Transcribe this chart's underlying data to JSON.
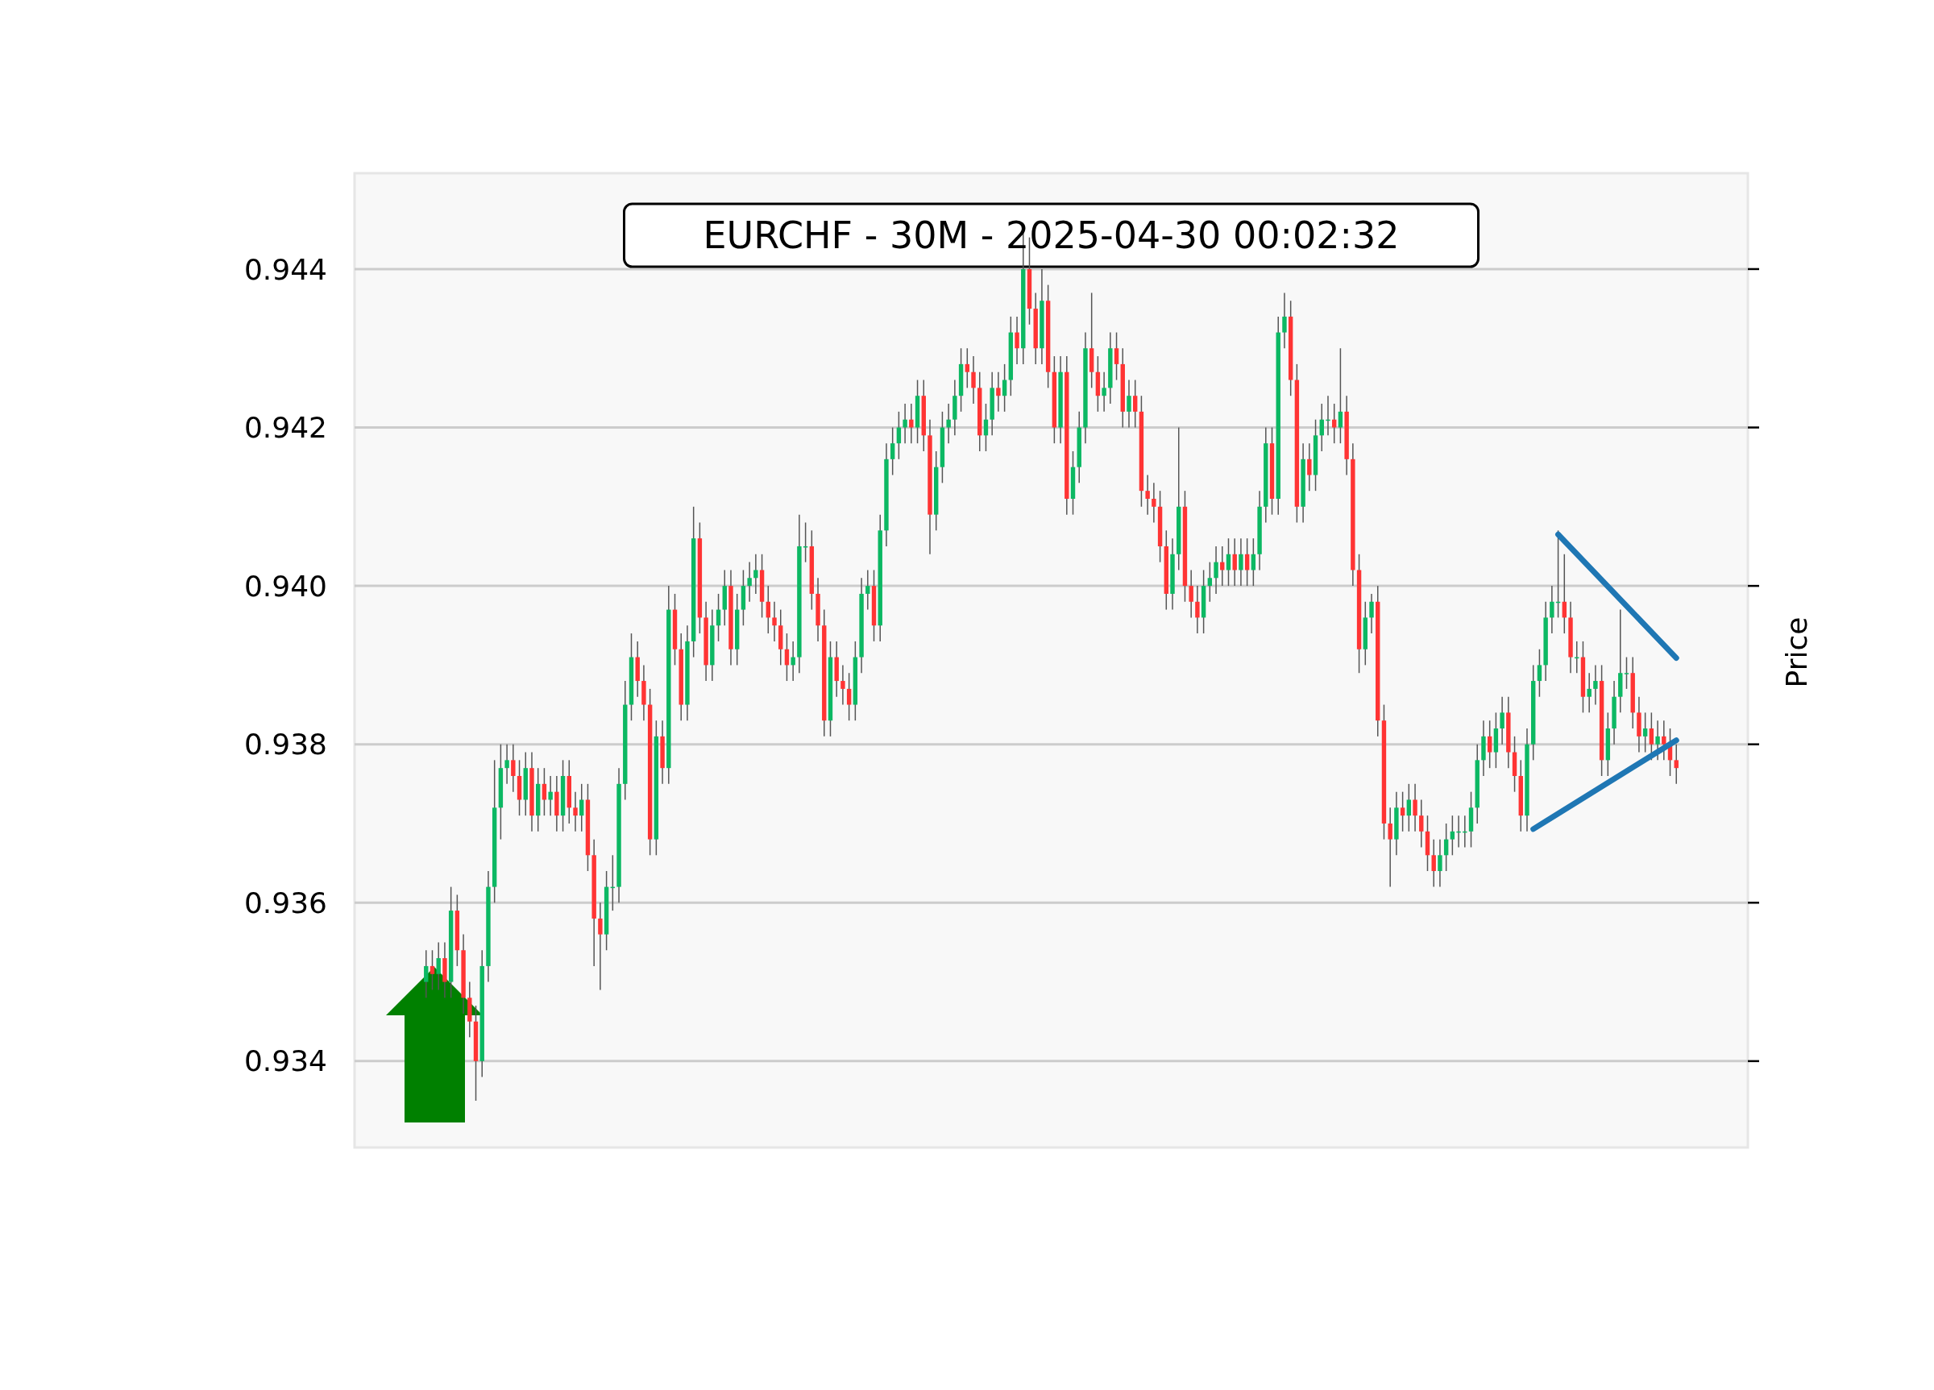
{
  "chart_data": {
    "type": "candlestick",
    "title": "EURCHF - 30M - 2025-04-30 00:02:32",
    "ylabel": "Price",
    "ylim": [
      0.93291,
      0.94521
    ],
    "yticks": [
      0.934,
      0.936,
      0.938,
      {
        "value": 0.94,
        "label": "0.940"
      },
      0.942,
      0.944
    ],
    "grid": "y",
    "categories": [
      null,
      null,
      null,
      null,
      null,
      null,
      null,
      null,
      null,
      null,
      null,
      null,
      null,
      null,
      null,
      null,
      null,
      null,
      null,
      null,
      null,
      null,
      null,
      null,
      null,
      null,
      null,
      null,
      null,
      null,
      null,
      null,
      null,
      null,
      null,
      null,
      null,
      null,
      null,
      null,
      null,
      null,
      null,
      null,
      null,
      null,
      null,
      null,
      null,
      null,
      null,
      null,
      null,
      null,
      null,
      null,
      null,
      null,
      null,
      null,
      null,
      null,
      null,
      null,
      null,
      null,
      null,
      null,
      null,
      null,
      null,
      null,
      null,
      null,
      null,
      null,
      null,
      null,
      null,
      null,
      null,
      null,
      null,
      null,
      null,
      null,
      null,
      null,
      null,
      null,
      null,
      null,
      null,
      null,
      null,
      null,
      null,
      null,
      null,
      null,
      null,
      null,
      null,
      null,
      null,
      null,
      null,
      null,
      null,
      null,
      null,
      null,
      null,
      null,
      null,
      null,
      null,
      null,
      null,
      null,
      null,
      null,
      null,
      null,
      null,
      null,
      null,
      null,
      null,
      null,
      null,
      null,
      null,
      null,
      null,
      null,
      null,
      null,
      null,
      null,
      null,
      null,
      null,
      null,
      null,
      null,
      null,
      null,
      null,
      null,
      null,
      null,
      null,
      null,
      null,
      null,
      null,
      null,
      null,
      null,
      null,
      null,
      null,
      null,
      null,
      null,
      null,
      null,
      null,
      null,
      null,
      null,
      null,
      null,
      null,
      null,
      null,
      null,
      null,
      null,
      null,
      null,
      null,
      null,
      null,
      null,
      null,
      null,
      null,
      null,
      null,
      null,
      null,
      null,
      null,
      null,
      null,
      null,
      null,
      null,
      null,
      null,
      null,
      null,
      null,
      null,
      null,
      null,
      null,
      null,
      null,
      null,
      null,
      null,
      null,
      null,
      null,
      null,
      null,
      null,
      null,
      null,
      null,
      null
    ],
    "ohlc": [
      null,
      null,
      null,
      null,
      null,
      null,
      null,
      null,
      null,
      null,
      null,
      [
        0.935,
        0.9354,
        0.9348,
        0.9352
      ],
      [
        0.9352,
        0.9354,
        0.9349,
        0.9351
      ],
      [
        0.9351,
        0.9355,
        0.9349,
        0.9353
      ],
      [
        0.9353,
        0.9355,
        0.9348,
        0.935
      ],
      [
        0.935,
        0.9362,
        0.9348,
        0.9359
      ],
      [
        0.9359,
        0.9361,
        0.9352,
        0.9354
      ],
      [
        0.9354,
        0.9356,
        0.9346,
        0.9348
      ],
      [
        0.9348,
        0.935,
        0.9343,
        0.9345
      ],
      [
        0.9345,
        0.9347,
        0.9335,
        0.934
      ],
      [
        0.934,
        0.9354,
        0.9338,
        0.9352
      ],
      [
        0.9352,
        0.9364,
        0.935,
        0.9362
      ],
      [
        0.9362,
        0.9378,
        0.936,
        0.9372
      ],
      [
        0.9372,
        0.938,
        0.9368,
        0.9377
      ],
      [
        0.9377,
        0.938,
        0.9375,
        0.9378
      ],
      [
        0.9378,
        0.938,
        0.9374,
        0.9376
      ],
      [
        0.9376,
        0.9378,
        0.9371,
        0.9373
      ],
      [
        0.9373,
        0.9379,
        0.9371,
        0.9377
      ],
      [
        0.9377,
        0.9379,
        0.9369,
        0.9371
      ],
      [
        0.9371,
        0.9377,
        0.9369,
        0.9375
      ],
      [
        0.9375,
        0.9377,
        0.9371,
        0.9373
      ],
      [
        0.9373,
        0.9376,
        0.9371,
        0.9374
      ],
      [
        0.9374,
        0.9376,
        0.9369,
        0.9371
      ],
      [
        0.9371,
        0.9378,
        0.9369,
        0.9376
      ],
      [
        0.9376,
        0.9378,
        0.937,
        0.9372
      ],
      [
        0.9372,
        0.9374,
        0.9369,
        0.9371
      ],
      [
        0.9371,
        0.9375,
        0.9369,
        0.9373
      ],
      [
        0.9373,
        0.9375,
        0.9364,
        0.9366
      ],
      [
        0.9366,
        0.9368,
        0.9352,
        0.9358
      ],
      [
        0.9358,
        0.936,
        0.9349,
        0.9356
      ],
      [
        0.9356,
        0.9364,
        0.9354,
        0.9362
      ],
      [
        0.9362,
        0.9366,
        0.9359,
        0.9362
      ],
      [
        0.9362,
        0.9377,
        0.936,
        0.9375
      ],
      [
        0.9375,
        0.9388,
        0.9373,
        0.9385
      ],
      [
        0.9385,
        0.9394,
        0.9383,
        0.9391
      ],
      [
        0.9391,
        0.9393,
        0.9386,
        0.9388
      ],
      [
        0.9388,
        0.939,
        0.9383,
        0.9385
      ],
      [
        0.9385,
        0.9387,
        0.9366,
        0.9368
      ],
      [
        0.9368,
        0.9383,
        0.9366,
        0.9381
      ],
      [
        0.9381,
        0.9383,
        0.9375,
        0.9377
      ],
      [
        0.9377,
        0.94,
        0.9375,
        0.9397
      ],
      [
        0.9397,
        0.9399,
        0.939,
        0.9392
      ],
      [
        0.9392,
        0.9394,
        0.9383,
        0.9385
      ],
      [
        0.9385,
        0.9395,
        0.9383,
        0.9393
      ],
      [
        0.9393,
        0.941,
        0.9391,
        0.9406
      ],
      [
        0.9406,
        0.9408,
        0.9394,
        0.9396
      ],
      [
        0.9396,
        0.9398,
        0.9388,
        0.939
      ],
      [
        0.939,
        0.9397,
        0.9388,
        0.9395
      ],
      [
        0.9395,
        0.9399,
        0.9393,
        0.9397
      ],
      [
        0.9397,
        0.9402,
        0.9395,
        0.94
      ],
      [
        0.94,
        0.9402,
        0.939,
        0.9392
      ],
      [
        0.9392,
        0.9399,
        0.939,
        0.9397
      ],
      [
        0.9397,
        0.9402,
        0.9395,
        0.94
      ],
      [
        0.94,
        0.9403,
        0.9398,
        0.9401
      ],
      [
        0.9401,
        0.9404,
        0.9399,
        0.9402
      ],
      [
        0.9402,
        0.9404,
        0.9396,
        0.9398
      ],
      [
        0.9398,
        0.94,
        0.9394,
        0.9396
      ],
      [
        0.9396,
        0.9398,
        0.9393,
        0.9395
      ],
      [
        0.9395,
        0.9397,
        0.939,
        0.9392
      ],
      [
        0.9392,
        0.9394,
        0.9388,
        0.939
      ],
      [
        0.939,
        0.9393,
        0.9388,
        0.9391
      ],
      [
        0.9391,
        0.9409,
        0.9389,
        0.9405
      ],
      [
        0.9405,
        0.9408,
        0.9403,
        0.9405
      ],
      [
        0.9405,
        0.9407,
        0.9397,
        0.9399
      ],
      [
        0.9399,
        0.9401,
        0.9393,
        0.9395
      ],
      [
        0.9395,
        0.9397,
        0.9381,
        0.9383
      ],
      [
        0.9383,
        0.9393,
        0.9381,
        0.9391
      ],
      [
        0.9391,
        0.9393,
        0.9386,
        0.9388
      ],
      [
        0.9388,
        0.939,
        0.9385,
        0.9387
      ],
      [
        0.9387,
        0.9389,
        0.9383,
        0.9385
      ],
      [
        0.9385,
        0.9393,
        0.9383,
        0.9391
      ],
      [
        0.9391,
        0.9401,
        0.9389,
        0.9399
      ],
      [
        0.9399,
        0.9402,
        0.9397,
        0.94
      ],
      [
        0.94,
        0.9402,
        0.9393,
        0.9395
      ],
      [
        0.9395,
        0.9409,
        0.9393,
        0.9407
      ],
      [
        0.9407,
        0.9418,
        0.9405,
        0.9416
      ],
      [
        0.9416,
        0.942,
        0.9414,
        0.9418
      ],
      [
        0.9418,
        0.9422,
        0.9416,
        0.942
      ],
      [
        0.942,
        0.9423,
        0.9418,
        0.9421
      ],
      [
        0.9421,
        0.9423,
        0.9418,
        0.942
      ],
      [
        0.942,
        0.9426,
        0.9418,
        0.9424
      ],
      [
        0.9424,
        0.9426,
        0.9417,
        0.9419
      ],
      [
        0.9419,
        0.9421,
        0.9404,
        0.9409
      ],
      [
        0.9409,
        0.9417,
        0.9407,
        0.9415
      ],
      [
        0.9415,
        0.9422,
        0.9413,
        0.942
      ],
      [
        0.942,
        0.9423,
        0.9418,
        0.9421
      ],
      [
        0.9421,
        0.9426,
        0.9419,
        0.9424
      ],
      [
        0.9424,
        0.943,
        0.9422,
        0.9428
      ],
      [
        0.9428,
        0.943,
        0.9425,
        0.9427
      ],
      [
        0.9427,
        0.9429,
        0.9423,
        0.9425
      ],
      [
        0.9425,
        0.9427,
        0.9417,
        0.9419
      ],
      [
        0.9419,
        0.9423,
        0.9417,
        0.9421
      ],
      [
        0.9421,
        0.9427,
        0.9419,
        0.9425
      ],
      [
        0.9425,
        0.9427,
        0.9422,
        0.9424
      ],
      [
        0.9424,
        0.9428,
        0.9422,
        0.9426
      ],
      [
        0.9426,
        0.9434,
        0.9424,
        0.9432
      ],
      [
        0.9432,
        0.9434,
        0.9428,
        0.943
      ],
      [
        0.943,
        0.9445,
        0.9428,
        0.944
      ],
      [
        0.944,
        0.9444,
        0.9433,
        0.9435
      ],
      [
        0.9435,
        0.9437,
        0.9428,
        0.943
      ],
      [
        0.943,
        0.944,
        0.9428,
        0.9436
      ],
      [
        0.9436,
        0.9438,
        0.9425,
        0.9427
      ],
      [
        0.9427,
        0.9429,
        0.9418,
        0.942
      ],
      [
        0.942,
        0.9429,
        0.9418,
        0.9427
      ],
      [
        0.9427,
        0.9429,
        0.9409,
        0.9411
      ],
      [
        0.9411,
        0.9417,
        0.9409,
        0.9415
      ],
      [
        0.9415,
        0.9422,
        0.9413,
        0.942
      ],
      [
        0.942,
        0.9432,
        0.9418,
        0.943
      ],
      [
        0.943,
        0.9437,
        0.9425,
        0.9427
      ],
      [
        0.9427,
        0.9429,
        0.9422,
        0.9424
      ],
      [
        0.9424,
        0.9427,
        0.9422,
        0.9425
      ],
      [
        0.9425,
        0.9432,
        0.9423,
        0.943
      ],
      [
        0.943,
        0.9432,
        0.9426,
        0.9428
      ],
      [
        0.9428,
        0.943,
        0.942,
        0.9422
      ],
      [
        0.9422,
        0.9426,
        0.942,
        0.9424
      ],
      [
        0.9424,
        0.9426,
        0.942,
        0.9422
      ],
      [
        0.9422,
        0.9424,
        0.941,
        0.9412
      ],
      [
        0.9412,
        0.9414,
        0.9409,
        0.9411
      ],
      [
        0.9411,
        0.9413,
        0.9408,
        0.941
      ],
      [
        0.941,
        0.9412,
        0.9403,
        0.9405
      ],
      [
        0.9405,
        0.9407,
        0.9397,
        0.9399
      ],
      [
        0.9399,
        0.9406,
        0.9397,
        0.9404
      ],
      [
        0.9404,
        0.942,
        0.9402,
        0.941
      ],
      [
        0.941,
        0.9412,
        0.9398,
        0.94
      ],
      [
        0.94,
        0.9402,
        0.9396,
        0.9398
      ],
      [
        0.9398,
        0.94,
        0.9394,
        0.9396
      ],
      [
        0.9396,
        0.9402,
        0.9394,
        0.94
      ],
      [
        0.94,
        0.9403,
        0.9398,
        0.9401
      ],
      [
        0.9401,
        0.9405,
        0.9399,
        0.9403
      ],
      [
        0.9403,
        0.9405,
        0.94,
        0.9402
      ],
      [
        0.9402,
        0.9406,
        0.94,
        0.9404
      ],
      [
        0.9404,
        0.9406,
        0.94,
        0.9402
      ],
      [
        0.9402,
        0.9406,
        0.94,
        0.9404
      ],
      [
        0.9404,
        0.9406,
        0.94,
        0.9402
      ],
      [
        0.9402,
        0.9406,
        0.94,
        0.9404
      ],
      [
        0.9404,
        0.9412,
        0.9402,
        0.941
      ],
      [
        0.941,
        0.942,
        0.9408,
        0.9418
      ],
      [
        0.9418,
        0.942,
        0.9409,
        0.9411
      ],
      [
        0.9411,
        0.9434,
        0.9409,
        0.9432
      ],
      [
        0.9432,
        0.9437,
        0.943,
        0.9434
      ],
      [
        0.9434,
        0.9436,
        0.9424,
        0.9426
      ],
      [
        0.9426,
        0.9428,
        0.9408,
        0.941
      ],
      [
        0.941,
        0.9418,
        0.9408,
        0.9416
      ],
      [
        0.9416,
        0.9418,
        0.9412,
        0.9414
      ],
      [
        0.9414,
        0.9421,
        0.9412,
        0.9419
      ],
      [
        0.9419,
        0.9423,
        0.9417,
        0.9421
      ],
      [
        0.9421,
        0.9424,
        0.9419,
        0.9421
      ],
      [
        0.9421,
        0.9423,
        0.9418,
        0.942
      ],
      [
        0.942,
        0.943,
        0.9418,
        0.9422
      ],
      [
        0.9422,
        0.9424,
        0.9414,
        0.9416
      ],
      [
        0.9416,
        0.9418,
        0.94,
        0.9402
      ],
      [
        0.9402,
        0.9404,
        0.9389,
        0.9392
      ],
      [
        0.9392,
        0.9398,
        0.939,
        0.9396
      ],
      [
        0.9396,
        0.9399,
        0.9394,
        0.9398
      ],
      [
        0.9398,
        0.94,
        0.9381,
        0.9383
      ],
      [
        0.9383,
        0.9385,
        0.9368,
        0.937
      ],
      [
        0.937,
        0.9372,
        0.9362,
        0.9368
      ],
      [
        0.9368,
        0.9374,
        0.9366,
        0.9372
      ],
      [
        0.9372,
        0.9374,
        0.9369,
        0.9371
      ],
      [
        0.9371,
        0.9375,
        0.9369,
        0.9373
      ],
      [
        0.9373,
        0.9375,
        0.9369,
        0.9371
      ],
      [
        0.9371,
        0.9373,
        0.9367,
        0.9369
      ],
      [
        0.9369,
        0.9371,
        0.9364,
        0.9366
      ],
      [
        0.9366,
        0.9368,
        0.9362,
        0.9364
      ],
      [
        0.9364,
        0.9368,
        0.9362,
        0.9366
      ],
      [
        0.9366,
        0.937,
        0.9364,
        0.9368
      ],
      [
        0.9368,
        0.9371,
        0.9366,
        0.9369
      ],
      [
        0.9369,
        0.9371,
        0.9367,
        0.9369
      ],
      [
        0.9369,
        0.9371,
        0.9367,
        0.9369
      ],
      [
        0.9369,
        0.9374,
        0.9367,
        0.9372
      ],
      [
        0.9372,
        0.938,
        0.937,
        0.9378
      ],
      [
        0.9378,
        0.9383,
        0.9376,
        0.9381
      ],
      [
        0.9381,
        0.9383,
        0.9377,
        0.9379
      ],
      [
        0.9379,
        0.9384,
        0.9377,
        0.9382
      ],
      [
        0.9382,
        0.9386,
        0.938,
        0.9384
      ],
      [
        0.9384,
        0.9386,
        0.9377,
        0.9379
      ],
      [
        0.9379,
        0.9381,
        0.9374,
        0.9376
      ],
      [
        0.9376,
        0.9378,
        0.9369,
        0.9371
      ],
      [
        0.9371,
        0.9382,
        0.9369,
        0.938
      ],
      [
        0.938,
        0.939,
        0.9378,
        0.9388
      ],
      [
        0.9388,
        0.9392,
        0.9386,
        0.939
      ],
      [
        0.939,
        0.9398,
        0.9388,
        0.9396
      ],
      [
        0.9396,
        0.94,
        0.9394,
        0.9398
      ],
      [
        0.9398,
        0.9407,
        0.9396,
        0.9398
      ],
      [
        0.9398,
        0.9404,
        0.9394,
        0.9396
      ],
      [
        0.9396,
        0.9398,
        0.9389,
        0.9391
      ],
      [
        0.9391,
        0.9393,
        0.9389,
        0.9391
      ],
      [
        0.9391,
        0.9393,
        0.9384,
        0.9386
      ],
      [
        0.9386,
        0.9389,
        0.9384,
        0.9387
      ],
      [
        0.9387,
        0.939,
        0.9385,
        0.9388
      ],
      [
        0.9388,
        0.939,
        0.9376,
        0.9378
      ],
      [
        0.9378,
        0.9384,
        0.9376,
        0.9382
      ],
      [
        0.9382,
        0.9388,
        0.938,
        0.9386
      ],
      [
        0.9386,
        0.9397,
        0.9384,
        0.9389
      ],
      [
        0.9389,
        0.9391,
        0.9387,
        0.9389
      ],
      [
        0.9389,
        0.9391,
        0.9382,
        0.9384
      ],
      [
        0.9384,
        0.9386,
        0.9379,
        0.9381
      ],
      [
        0.9381,
        0.9384,
        0.9379,
        0.9382
      ],
      [
        0.9382,
        0.9384,
        0.9378,
        0.938
      ],
      [
        0.938,
        0.9383,
        0.9378,
        0.9381
      ],
      [
        0.9381,
        0.9383,
        0.9378,
        0.938
      ],
      [
        0.938,
        0.9382,
        0.9376,
        0.9378
      ],
      [
        0.9378,
        0.938,
        0.9375,
        0.9377
      ],
      null,
      null,
      null,
      null,
      null,
      null,
      null,
      null,
      null,
      null,
      null
    ],
    "series": [
      {
        "type": "line",
        "color": "#1f77b4",
        "values": [
          null,
          null,
          null,
          null,
          null,
          null,
          null,
          null,
          null,
          null,
          null,
          null,
          null,
          null,
          null,
          null,
          null,
          null,
          null,
          null,
          null,
          null,
          null,
          null,
          null,
          null,
          null,
          null,
          null,
          null,
          null,
          null,
          null,
          null,
          null,
          null,
          null,
          null,
          null,
          null,
          null,
          null,
          null,
          null,
          null,
          null,
          null,
          null,
          null,
          null,
          null,
          null,
          null,
          null,
          null,
          null,
          null,
          null,
          null,
          null,
          null,
          null,
          null,
          null,
          null,
          null,
          null,
          null,
          null,
          null,
          null,
          null,
          null,
          null,
          null,
          null,
          null,
          null,
          null,
          null,
          null,
          null,
          null,
          null,
          null,
          null,
          null,
          null,
          null,
          null,
          null,
          null,
          null,
          null,
          null,
          null,
          null,
          null,
          null,
          null,
          null,
          null,
          null,
          null,
          null,
          null,
          null,
          null,
          null,
          null,
          null,
          null,
          null,
          null,
          null,
          null,
          null,
          null,
          null,
          null,
          null,
          null,
          null,
          null,
          null,
          null,
          null,
          null,
          null,
          null,
          null,
          null,
          null,
          null,
          null,
          null,
          null,
          null,
          null,
          null,
          null,
          null,
          null,
          null,
          null,
          null,
          null,
          null,
          null,
          null,
          null,
          null,
          null,
          null,
          null,
          null,
          null,
          null,
          null,
          null,
          null,
          null,
          null,
          null,
          null,
          null,
          null,
          null,
          null,
          null,
          null,
          null,
          null,
          null,
          null,
          null,
          null,
          null,
          null,
          null,
          null,
          null,
          null,
          null,
          null,
          null,
          null,
          null,
          null,
          null,
          null,
          null,
          null,
          0.94065,
          null,
          null,
          null,
          null,
          null,
          null,
          null,
          null,
          null,
          null,
          null,
          null,
          null,
          null,
          null,
          null,
          null,
          null,
          0.93909,
          null,
          null,
          null,
          null,
          null,
          null,
          null,
          null,
          null,
          null,
          null
        ]
      },
      {
        "type": "line",
        "color": "#1f77b4",
        "values": [
          null,
          null,
          null,
          null,
          null,
          null,
          null,
          null,
          null,
          null,
          null,
          null,
          null,
          null,
          null,
          null,
          null,
          null,
          null,
          null,
          null,
          null,
          null,
          null,
          null,
          null,
          null,
          null,
          null,
          null,
          null,
          null,
          null,
          null,
          null,
          null,
          null,
          null,
          null,
          null,
          null,
          null,
          null,
          null,
          null,
          null,
          null,
          null,
          null,
          null,
          null,
          null,
          null,
          null,
          null,
          null,
          null,
          null,
          null,
          null,
          null,
          null,
          null,
          null,
          null,
          null,
          null,
          null,
          null,
          null,
          null,
          null,
          null,
          null,
          null,
          null,
          null,
          null,
          null,
          null,
          null,
          null,
          null,
          null,
          null,
          null,
          null,
          null,
          null,
          null,
          null,
          null,
          null,
          null,
          null,
          null,
          null,
          null,
          null,
          null,
          null,
          null,
          null,
          null,
          null,
          null,
          null,
          null,
          null,
          null,
          null,
          null,
          null,
          null,
          null,
          null,
          null,
          null,
          null,
          null,
          null,
          null,
          null,
          null,
          null,
          null,
          null,
          null,
          null,
          null,
          null,
          null,
          null,
          null,
          null,
          null,
          null,
          null,
          null,
          null,
          null,
          null,
          null,
          null,
          null,
          null,
          null,
          null,
          null,
          null,
          null,
          null,
          null,
          null,
          null,
          null,
          null,
          null,
          null,
          null,
          null,
          null,
          null,
          null,
          null,
          null,
          null,
          null,
          null,
          null,
          null,
          null,
          null,
          null,
          null,
          null,
          null,
          null,
          null,
          null,
          null,
          null,
          null,
          null,
          null,
          null,
          null,
          null,
          null,
          0.93693,
          null,
          null,
          null,
          null,
          null,
          null,
          null,
          null,
          null,
          null,
          null,
          null,
          null,
          null,
          null,
          null,
          null,
          null,
          null,
          null,
          null,
          null,
          0.93805,
          null,
          null,
          null,
          null,
          null,
          null,
          null,
          null,
          null,
          null,
          null
        ]
      }
    ]
  }
}
